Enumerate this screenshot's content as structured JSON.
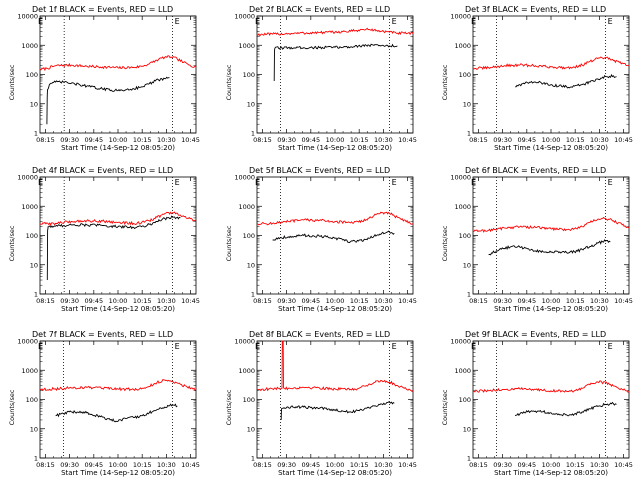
{
  "figure": {
    "x_ticks": [
      "08:15",
      "09:30",
      "09:45",
      "10:00",
      "10:15",
      "10:30",
      "10:45"
    ],
    "y_ticks": [
      "1",
      "10",
      "100",
      "1000",
      "10000"
    ],
    "ylabel": "Counts/sec",
    "xlabel": "Start Time (14-Sep-12 08:05:20)",
    "flag_label": "E",
    "colors": {
      "events": "#000000",
      "lld": "#ff0000",
      "axes": "#000000"
    }
  },
  "chart_data": [
    {
      "type": "line",
      "scale": "log",
      "ylim": [
        1,
        10000
      ],
      "title": "Det 1f BLACK = Events, RED = LLD",
      "series": [
        {
          "color": "#ff0000",
          "x": [
            0.0,
            0.044,
            0.1,
            0.2,
            0.3,
            0.4,
            0.5,
            0.6,
            0.65,
            0.7,
            0.72,
            0.76,
            0.8,
            0.84,
            0.88,
            0.92,
            0.96,
            1.0
          ],
          "y": [
            150,
            160,
            200,
            210,
            190,
            180,
            170,
            175,
            190,
            230,
            260,
            330,
            390,
            400,
            340,
            260,
            210,
            180
          ]
        },
        {
          "color": "#000000",
          "x": [
            0.044,
            0.046,
            0.048,
            0.06,
            0.07,
            0.1,
            0.15,
            0.2,
            0.3,
            0.4,
            0.5,
            0.55,
            0.6,
            0.65,
            0.7,
            0.72,
            0.76,
            0.8,
            0.83
          ],
          "y": [
            2,
            15,
            30,
            45,
            50,
            55,
            55,
            50,
            40,
            32,
            28,
            30,
            33,
            38,
            48,
            55,
            65,
            72,
            78
          ]
        }
      ],
      "markers": [
        0.155,
        0.85
      ]
    },
    {
      "type": "line",
      "scale": "log",
      "ylim": [
        1,
        10000
      ],
      "title": "Det 2f BLACK = Events, RED = LLD",
      "series": [
        {
          "color": "#ff0000",
          "x": [
            0.0,
            0.1,
            0.2,
            0.3,
            0.4,
            0.5,
            0.6,
            0.65,
            0.7,
            0.75,
            0.8,
            0.85,
            0.9,
            1.0
          ],
          "y": [
            2300,
            2400,
            2500,
            2600,
            2700,
            2800,
            3000,
            3300,
            3500,
            3300,
            3000,
            2800,
            2600,
            2500
          ]
        },
        {
          "color": "#000000",
          "x": [
            0.11,
            0.112,
            0.115,
            0.2,
            0.3,
            0.4,
            0.5,
            0.6,
            0.65,
            0.7,
            0.75,
            0.8,
            0.85,
            0.9
          ],
          "y": [
            60,
            700,
            800,
            820,
            830,
            830,
            850,
            880,
            950,
            1000,
            1000,
            980,
            950,
            950
          ]
        }
      ],
      "markers": [
        0.15,
        0.85
      ]
    },
    {
      "type": "line",
      "scale": "log",
      "ylim": [
        1,
        10000
      ],
      "title": "Det 3f BLACK = Events, RED = LLD",
      "series": [
        {
          "color": "#ff0000",
          "x": [
            0.0,
            0.1,
            0.2,
            0.3,
            0.4,
            0.5,
            0.6,
            0.65,
            0.7,
            0.75,
            0.8,
            0.85,
            0.9,
            1.0
          ],
          "y": [
            160,
            170,
            200,
            210,
            200,
            180,
            170,
            180,
            210,
            280,
            350,
            380,
            300,
            200
          ]
        },
        {
          "color": "#000000",
          "x": [
            0.27,
            0.3,
            0.35,
            0.4,
            0.45,
            0.5,
            0.55,
            0.6,
            0.65,
            0.7,
            0.75,
            0.8,
            0.85,
            0.9,
            0.92
          ],
          "y": [
            38,
            45,
            52,
            55,
            50,
            45,
            40,
            38,
            40,
            45,
            55,
            70,
            85,
            90,
            85
          ]
        }
      ],
      "markers": [
        0.15,
        0.85
      ]
    },
    {
      "type": "line",
      "scale": "log",
      "ylim": [
        1,
        10000
      ],
      "title": "Det 4f BLACK = Events, RED = LLD",
      "series": [
        {
          "color": "#ff0000",
          "x": [
            0.0,
            0.1,
            0.2,
            0.3,
            0.4,
            0.5,
            0.6,
            0.65,
            0.7,
            0.75,
            0.8,
            0.85,
            0.9,
            1.0
          ],
          "y": [
            250,
            260,
            300,
            320,
            310,
            280,
            260,
            270,
            320,
            420,
            560,
            600,
            500,
            300
          ]
        },
        {
          "color": "#000000",
          "x": [
            0.047,
            0.049,
            0.052,
            0.1,
            0.2,
            0.3,
            0.4,
            0.5,
            0.6,
            0.65,
            0.7,
            0.75,
            0.8,
            0.85,
            0.9
          ],
          "y": [
            3,
            150,
            200,
            210,
            230,
            230,
            220,
            200,
            190,
            200,
            240,
            300,
            380,
            420,
            400
          ]
        }
      ],
      "markers": [
        0.155,
        0.85
      ]
    },
    {
      "type": "line",
      "scale": "log",
      "ylim": [
        1,
        10000
      ],
      "title": "Det 5f BLACK = Events, RED = LLD",
      "series": [
        {
          "color": "#ff0000",
          "x": [
            0.0,
            0.1,
            0.2,
            0.3,
            0.4,
            0.5,
            0.6,
            0.65,
            0.7,
            0.75,
            0.8,
            0.85,
            0.9,
            1.0
          ],
          "y": [
            250,
            260,
            300,
            340,
            330,
            300,
            270,
            290,
            350,
            480,
            600,
            560,
            420,
            250
          ]
        },
        {
          "color": "#000000",
          "x": [
            0.1,
            0.15,
            0.2,
            0.3,
            0.4,
            0.5,
            0.55,
            0.6,
            0.65,
            0.7,
            0.75,
            0.8,
            0.85,
            0.88
          ],
          "y": [
            70,
            85,
            90,
            100,
            95,
            80,
            70,
            62,
            65,
            75,
            95,
            120,
            130,
            120
          ]
        }
      ],
      "markers": [
        0.15,
        0.85
      ]
    },
    {
      "type": "line",
      "scale": "log",
      "ylim": [
        1,
        10000
      ],
      "title": "Det 6f BLACK = Events, RED = LLD",
      "series": [
        {
          "color": "#ff0000",
          "x": [
            0.0,
            0.1,
            0.2,
            0.3,
            0.4,
            0.5,
            0.6,
            0.65,
            0.7,
            0.75,
            0.8,
            0.85,
            0.9,
            1.0
          ],
          "y": [
            140,
            150,
            180,
            200,
            190,
            170,
            160,
            170,
            200,
            280,
            360,
            380,
            320,
            180
          ]
        },
        {
          "color": "#000000",
          "x": [
            0.1,
            0.15,
            0.2,
            0.25,
            0.3,
            0.35,
            0.4,
            0.5,
            0.6,
            0.65,
            0.7,
            0.75,
            0.8,
            0.85,
            0.88
          ],
          "y": [
            22,
            30,
            36,
            42,
            40,
            35,
            30,
            27,
            26,
            28,
            33,
            42,
            55,
            65,
            60
          ]
        }
      ],
      "markers": [
        0.15,
        0.85
      ]
    },
    {
      "type": "line",
      "scale": "log",
      "ylim": [
        1,
        10000
      ],
      "title": "Det 7f BLACK = Events, RED = LLD",
      "series": [
        {
          "color": "#ff0000",
          "x": [
            0.0,
            0.1,
            0.2,
            0.3,
            0.4,
            0.5,
            0.6,
            0.65,
            0.7,
            0.75,
            0.8,
            0.85,
            0.9,
            1.0
          ],
          "y": [
            220,
            230,
            250,
            260,
            240,
            230,
            220,
            230,
            280,
            380,
            460,
            420,
            330,
            220
          ]
        },
        {
          "color": "#000000",
          "x": [
            0.1,
            0.15,
            0.2,
            0.3,
            0.4,
            0.45,
            0.5,
            0.55,
            0.6,
            0.65,
            0.7,
            0.75,
            0.8,
            0.85,
            0.88
          ],
          "y": [
            28,
            33,
            38,
            35,
            25,
            20,
            18,
            22,
            24,
            28,
            35,
            45,
            55,
            65,
            60
          ]
        }
      ],
      "markers": [
        0.15,
        0.85
      ]
    },
    {
      "type": "line",
      "scale": "log",
      "ylim": [
        1,
        10000
      ],
      "title": "Det 8f BLACK = Events, RED = LLD",
      "series": [
        {
          "color": "#ff0000",
          "x": [
            0.0,
            0.1,
            0.16,
            0.162,
            0.168,
            0.17,
            0.2,
            0.3,
            0.4,
            0.5,
            0.6,
            0.65,
            0.7,
            0.75,
            0.8,
            0.85,
            0.9,
            1.0
          ],
          "y": [
            220,
            230,
            240,
            10000,
            10000,
            250,
            240,
            260,
            250,
            230,
            220,
            240,
            300,
            380,
            440,
            400,
            300,
            200
          ]
        },
        {
          "color": "#000000",
          "x": [
            0.155,
            0.157,
            0.16,
            0.2,
            0.3,
            0.4,
            0.5,
            0.55,
            0.6,
            0.65,
            0.7,
            0.75,
            0.8,
            0.85,
            0.88
          ],
          "y": [
            20,
            45,
            50,
            55,
            55,
            50,
            45,
            40,
            38,
            42,
            50,
            60,
            70,
            80,
            75
          ]
        }
      ],
      "markers": [
        0.15,
        0.85
      ]
    },
    {
      "type": "line",
      "scale": "log",
      "ylim": [
        1,
        10000
      ],
      "title": "Det 9f BLACK = Events, RED = LLD",
      "series": [
        {
          "color": "#ff0000",
          "x": [
            0.0,
            0.1,
            0.2,
            0.3,
            0.4,
            0.5,
            0.6,
            0.65,
            0.7,
            0.75,
            0.8,
            0.85,
            0.9,
            1.0
          ],
          "y": [
            190,
            200,
            220,
            230,
            220,
            200,
            190,
            200,
            240,
            320,
            400,
            380,
            290,
            190
          ]
        },
        {
          "color": "#000000",
          "x": [
            0.27,
            0.3,
            0.35,
            0.4,
            0.45,
            0.5,
            0.55,
            0.6,
            0.65,
            0.7,
            0.75,
            0.8,
            0.85,
            0.9,
            0.92
          ],
          "y": [
            28,
            32,
            38,
            40,
            38,
            35,
            32,
            30,
            32,
            38,
            48,
            58,
            68,
            72,
            68
          ]
        }
      ],
      "markers": [
        0.15,
        0.85
      ]
    }
  ]
}
